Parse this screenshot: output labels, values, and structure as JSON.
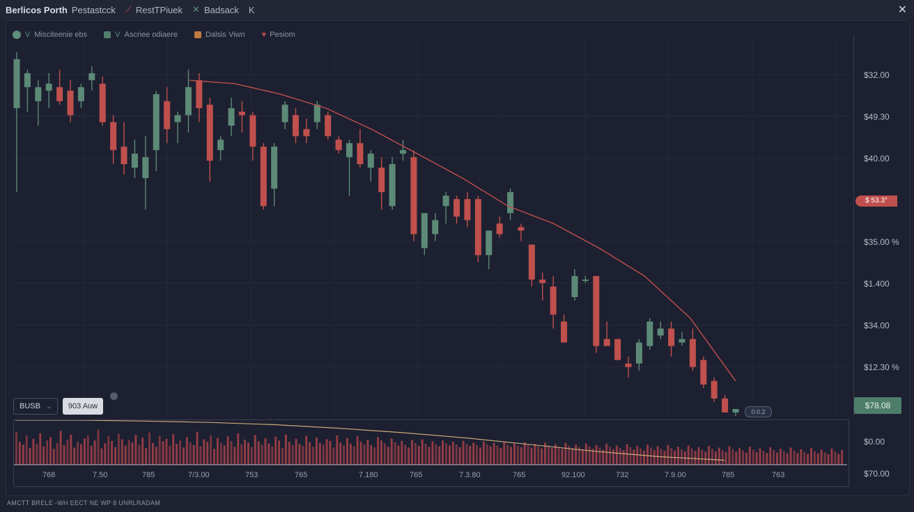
{
  "titlebar": {
    "title": "Berlicos Porth",
    "subtitle": "Pestastcck",
    "items": [
      {
        "label": "RestTPiuek",
        "icon": "chart-icon"
      },
      {
        "label": "Badsack",
        "icon": "tool-icon"
      },
      {
        "label": "K",
        "icon": "arrow-icon"
      }
    ],
    "close_symbol": "✕"
  },
  "legend": [
    {
      "label": "Misciteenie ebs",
      "prefix": "V",
      "color": "#5f8f7d",
      "shape": "circle"
    },
    {
      "label": "Ascriee odiaere",
      "prefix": "V",
      "color": "#4f7f6d",
      "shape": "square"
    },
    {
      "label": "Dalsis Viwn",
      "color": "#c07a3f",
      "shape": "square"
    },
    {
      "label": "Pesiom",
      "color": "#c0504d",
      "shape": "heart"
    }
  ],
  "price_axis": [
    "$32.00",
    "$49.30",
    "$40.00",
    "$35.00 %",
    "$1.400",
    "$34.00",
    "$12.30 %"
  ],
  "current_price": "$ 53.3°",
  "last_price_badge": "$78.08",
  "small_pill": "0.0.2",
  "controls": {
    "bus_label": "BUSB",
    "bus_caret": "⌄",
    "light_button": "903 Auw"
  },
  "volume_axis": [
    "$0.00",
    "$70.00"
  ],
  "time_labels": [
    "768",
    "7.50",
    "785",
    "7/3.00",
    "753",
    "765",
    "7.180",
    "765",
    "7.3.80",
    "765",
    "92.100",
    "732",
    "7.9.00",
    "785",
    "763"
  ],
  "status_text": "AMCTT BRELE -WH EECT NE WP 8 UNRLRADAM",
  "colors": {
    "bull": "#5c8a77",
    "bear": "#c0504d",
    "ma_line": "#c0504d",
    "volume_line": "#c9a97c"
  },
  "chart_data": {
    "type": "candlestick",
    "candles": [
      {
        "o": 88,
        "h": 104,
        "l": 64,
        "c": 102
      },
      {
        "o": 94,
        "h": 99,
        "l": 87,
        "c": 98
      },
      {
        "o": 90,
        "h": 96,
        "l": 83,
        "c": 94
      },
      {
        "o": 93,
        "h": 98,
        "l": 88,
        "c": 95
      },
      {
        "o": 94,
        "h": 99,
        "l": 89,
        "c": 90
      },
      {
        "o": 93,
        "h": 96,
        "l": 84,
        "c": 86
      },
      {
        "o": 90,
        "h": 95,
        "l": 88,
        "c": 94
      },
      {
        "o": 96,
        "h": 100,
        "l": 93,
        "c": 98
      },
      {
        "o": 95,
        "h": 97,
        "l": 83,
        "c": 84
      },
      {
        "o": 84,
        "h": 86,
        "l": 72,
        "c": 76
      },
      {
        "o": 77,
        "h": 84,
        "l": 69,
        "c": 72
      },
      {
        "o": 71,
        "h": 79,
        "l": 68,
        "c": 75
      },
      {
        "o": 68,
        "h": 80,
        "l": 59,
        "c": 74
      },
      {
        "o": 76,
        "h": 93,
        "l": 70,
        "c": 92
      },
      {
        "o": 90,
        "h": 94,
        "l": 78,
        "c": 82
      },
      {
        "o": 84,
        "h": 87,
        "l": 78,
        "c": 86
      },
      {
        "o": 86,
        "h": 99,
        "l": 81,
        "c": 94
      },
      {
        "o": 96,
        "h": 98,
        "l": 84,
        "c": 88
      },
      {
        "o": 89,
        "h": 91,
        "l": 67,
        "c": 73
      },
      {
        "o": 76,
        "h": 80,
        "l": 73,
        "c": 79
      },
      {
        "o": 83,
        "h": 91,
        "l": 80,
        "c": 88
      },
      {
        "o": 87,
        "h": 90,
        "l": 81,
        "c": 86
      },
      {
        "o": 86,
        "h": 87,
        "l": 73,
        "c": 77
      },
      {
        "o": 77,
        "h": 78,
        "l": 59,
        "c": 60
      },
      {
        "o": 65,
        "h": 78,
        "l": 60,
        "c": 77
      },
      {
        "o": 84,
        "h": 90,
        "l": 82,
        "c": 89
      },
      {
        "o": 86,
        "h": 88,
        "l": 78,
        "c": 80
      },
      {
        "o": 82,
        "h": 85,
        "l": 78,
        "c": 80
      },
      {
        "o": 84,
        "h": 90,
        "l": 82,
        "c": 89
      },
      {
        "o": 86,
        "h": 87,
        "l": 79,
        "c": 80
      },
      {
        "o": 79,
        "h": 80,
        "l": 75,
        "c": 76
      },
      {
        "o": 74,
        "h": 79,
        "l": 63,
        "c": 78
      },
      {
        "o": 78,
        "h": 82,
        "l": 71,
        "c": 72
      },
      {
        "o": 71,
        "h": 76,
        "l": 67,
        "c": 75
      },
      {
        "o": 71,
        "h": 74,
        "l": 59,
        "c": 64
      },
      {
        "o": 60,
        "h": 74,
        "l": 59,
        "c": 72
      },
      {
        "o": 75,
        "h": 79,
        "l": 73,
        "c": 76
      },
      {
        "o": 74,
        "h": 76,
        "l": 50,
        "c": 52
      },
      {
        "o": 48,
        "h": 57,
        "l": 46,
        "c": 58
      },
      {
        "o": 52,
        "h": 58,
        "l": 50,
        "c": 56
      },
      {
        "o": 60,
        "h": 64,
        "l": 55,
        "c": 63
      },
      {
        "o": 62,
        "h": 63,
        "l": 55,
        "c": 57
      },
      {
        "o": 62,
        "h": 64,
        "l": 54,
        "c": 56
      },
      {
        "o": 62,
        "h": 63,
        "l": 44,
        "c": 46
      },
      {
        "o": 46,
        "h": 53,
        "l": 42,
        "c": 53
      },
      {
        "o": 55,
        "h": 57,
        "l": 51,
        "c": 52
      },
      {
        "o": 58,
        "h": 65,
        "l": 56,
        "c": 64
      },
      {
        "o": 54,
        "h": 55,
        "l": 50,
        "c": 53
      },
      {
        "o": 49,
        "h": 49,
        "l": 37,
        "c": 39
      },
      {
        "o": 39,
        "h": 41,
        "l": 33,
        "c": 38
      },
      {
        "o": 37,
        "h": 40,
        "l": 25,
        "c": 29
      },
      {
        "o": 27,
        "h": 29,
        "l": 21,
        "c": 21
      },
      {
        "o": 34,
        "h": 42,
        "l": 33,
        "c": 40
      },
      {
        "o": 39,
        "h": 40,
        "l": 38,
        "c": 39
      },
      {
        "o": 40,
        "h": 40,
        "l": 18,
        "c": 20
      },
      {
        "o": 22,
        "h": 27,
        "l": 20,
        "c": 20
      },
      {
        "o": 22,
        "h": 22,
        "l": 16,
        "c": 16
      },
      {
        "o": 15,
        "h": 17,
        "l": 11,
        "c": 14
      },
      {
        "o": 15,
        "h": 22,
        "l": 13,
        "c": 21
      },
      {
        "o": 20,
        "h": 28,
        "l": 19,
        "c": 27
      },
      {
        "o": 23,
        "h": 27,
        "l": 22,
        "c": 25
      },
      {
        "o": 25,
        "h": 27,
        "l": 17,
        "c": 20
      },
      {
        "o": 21,
        "h": 24,
        "l": 20,
        "c": 22
      },
      {
        "o": 22,
        "h": 25,
        "l": 13,
        "c": 14
      },
      {
        "o": 16,
        "h": 17,
        "l": 8,
        "c": 9
      },
      {
        "o": 10,
        "h": 11,
        "l": 4,
        "c": 5
      },
      {
        "o": 5,
        "h": 6,
        "l": 1,
        "c": 1
      },
      {
        "o": 1,
        "h": 2,
        "l": 0,
        "c": 2
      }
    ],
    "ma_line": [
      96,
      95,
      92,
      88,
      82,
      75,
      68,
      60,
      55,
      48,
      40,
      28,
      10
    ],
    "volume": [
      78,
      55,
      48,
      70,
      40,
      62,
      50,
      75,
      44,
      58,
      66,
      38,
      52,
      81,
      47,
      60,
      72,
      41,
      55,
      49,
      63,
      70,
      45,
      58,
      84,
      39,
      51,
      68,
      57,
      42,
      74,
      61,
      46,
      59,
      53,
      71,
      48,
      65,
      40,
      77,
      52,
      43,
      69,
      56,
      62,
      45,
      73,
      50,
      58,
      41,
      66,
      54,
      47,
      79,
      44,
      61,
      55,
      70,
      38,
      64,
      52,
      46,
      68,
      57,
      43,
      75,
      49,
      60,
      53,
      42,
      71,
      56,
      48,
      63,
      51,
      44,
      67,
      58,
      40,
      72,
      55,
      47,
      62,
      50,
      45,
      69,
      54,
      43,
      65,
      52,
      48,
      61,
      57,
      41,
      70,
      53,
      46,
      64,
      50,
      44,
      68,
      55,
      49,
      60,
      47,
      42,
      66,
      58,
      51,
      43,
      63,
      54,
      46,
      57,
      48,
      41,
      59,
      52,
      45,
      61,
      50,
      43,
      56,
      49,
      44,
      58,
      51,
      46,
      55,
      48,
      42,
      57,
      50,
      45,
      53,
      47,
      41,
      56,
      49,
      44,
      52,
      46,
      40,
      55,
      48,
      43,
      51,
      45,
      42,
      54,
      47,
      41,
      50,
      44,
      39,
      53,
      46,
      40,
      49,
      43,
      38,
      52,
      45,
      39,
      48,
      42,
      37,
      51,
      44,
      38,
      47,
      41,
      36,
      50,
      43,
      37,
      46,
      40,
      35,
      49,
      42,
      36,
      45,
      39,
      34,
      48,
      41,
      35,
      44,
      38,
      33,
      47,
      40,
      34,
      43,
      37,
      32,
      46,
      39,
      33,
      42,
      36,
      31,
      45,
      38,
      32,
      41,
      35,
      30,
      44,
      37,
      31,
      40,
      34,
      29,
      43,
      36,
      30,
      39,
      33,
      28,
      42,
      35,
      29,
      38,
      32,
      27,
      41,
      34,
      28,
      37,
      31,
      26,
      40,
      33,
      27,
      36,
      30,
      25,
      39,
      32,
      26,
      35
    ],
    "volume_line": [
      100,
      100,
      98,
      95,
      90,
      82,
      72,
      60,
      45,
      30,
      18,
      10
    ]
  }
}
